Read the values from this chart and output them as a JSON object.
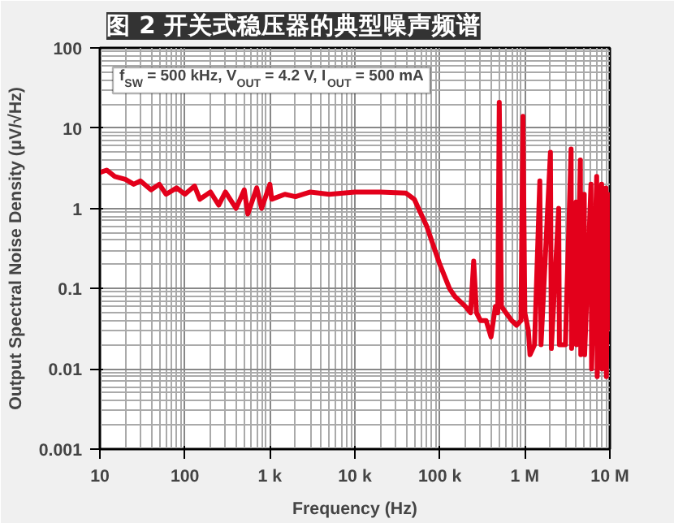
{
  "chart_data": {
    "type": "line",
    "title": "图 2 开关式稳压器的典型噪声频谱",
    "xlabel": "Frequency (Hz)",
    "ylabel": "Output Spectral Noise Density (μV/√Hz)",
    "annotations": [
      "f$_{SW}$ = 500 kHz, V$_{OUT}$ = 4.2 V, I$_{OUT}$ = 500 mA"
    ],
    "log": "xy",
    "grid": true,
    "marker": "none",
    "line_style": "solid",
    "xlim": [
      10,
      10000000
    ],
    "ylim": [
      0.001,
      100
    ],
    "xticks": [
      10,
      100,
      {
        "value": 1000,
        "label": "1 k"
      },
      {
        "value": 10000,
        "label": "10 k"
      },
      {
        "value": 100000,
        "label": "100 k"
      },
      {
        "value": 1000000,
        "label": "1 M"
      },
      {
        "value": 10000000,
        "label": "10 M"
      }
    ],
    "yticks": [
      0.001,
      0.01,
      0.1,
      1,
      10,
      100
    ],
    "series": [
      {
        "color": "#e3001b",
        "x": [
          10,
          12,
          15,
          20,
          25,
          30,
          40,
          50,
          60,
          80,
          100,
          130,
          150,
          200,
          250,
          300,
          400,
          500,
          550,
          700,
          800,
          1000,
          1050,
          1500,
          2000,
          3000,
          5000,
          10000,
          20000,
          40000,
          50000,
          70000,
          100000,
          130000,
          150000,
          200000,
          230000,
          250000,
          270000,
          300000,
          350000,
          400000,
          450000,
          480000,
          500000,
          530000,
          600000,
          700000,
          800000,
          900000,
          950000,
          1000000,
          1100000,
          1150000,
          1300000,
          1500000,
          1550000,
          2000000,
          2050000,
          2500000,
          2550000,
          3000000,
          3500000,
          3550000,
          4000000,
          4050000,
          4500000,
          4550000,
          5000000,
          5050000,
          6000000,
          6100000,
          7000000,
          7100000,
          8000000,
          8100000,
          9000000,
          9100000,
          9500000,
          10000000
        ],
        "values": [
          2.8,
          3.0,
          2.5,
          2.3,
          2.0,
          2.2,
          1.7,
          2.0,
          1.5,
          1.8,
          1.5,
          1.9,
          1.3,
          1.6,
          1.1,
          1.6,
          1.0,
          1.7,
          0.85,
          1.8,
          1.0,
          2.0,
          1.3,
          1.5,
          1.4,
          1.6,
          1.5,
          1.6,
          1.6,
          1.55,
          1.3,
          0.6,
          0.2,
          0.1,
          0.08,
          0.06,
          0.05,
          0.22,
          0.05,
          0.04,
          0.04,
          0.025,
          0.06,
          0.05,
          21,
          0.06,
          0.05,
          0.04,
          0.035,
          0.04,
          14,
          0.05,
          0.03,
          0.015,
          0.02,
          2.2,
          0.02,
          5.0,
          0.018,
          1.0,
          0.02,
          0.02,
          5.5,
          0.018,
          1.2,
          0.02,
          4.0,
          0.015,
          1.5,
          0.015,
          2.0,
          0.01,
          2.5,
          0.008,
          2.0,
          0.01,
          1.8,
          0.008,
          1.5,
          0.03
        ]
      }
    ]
  }
}
